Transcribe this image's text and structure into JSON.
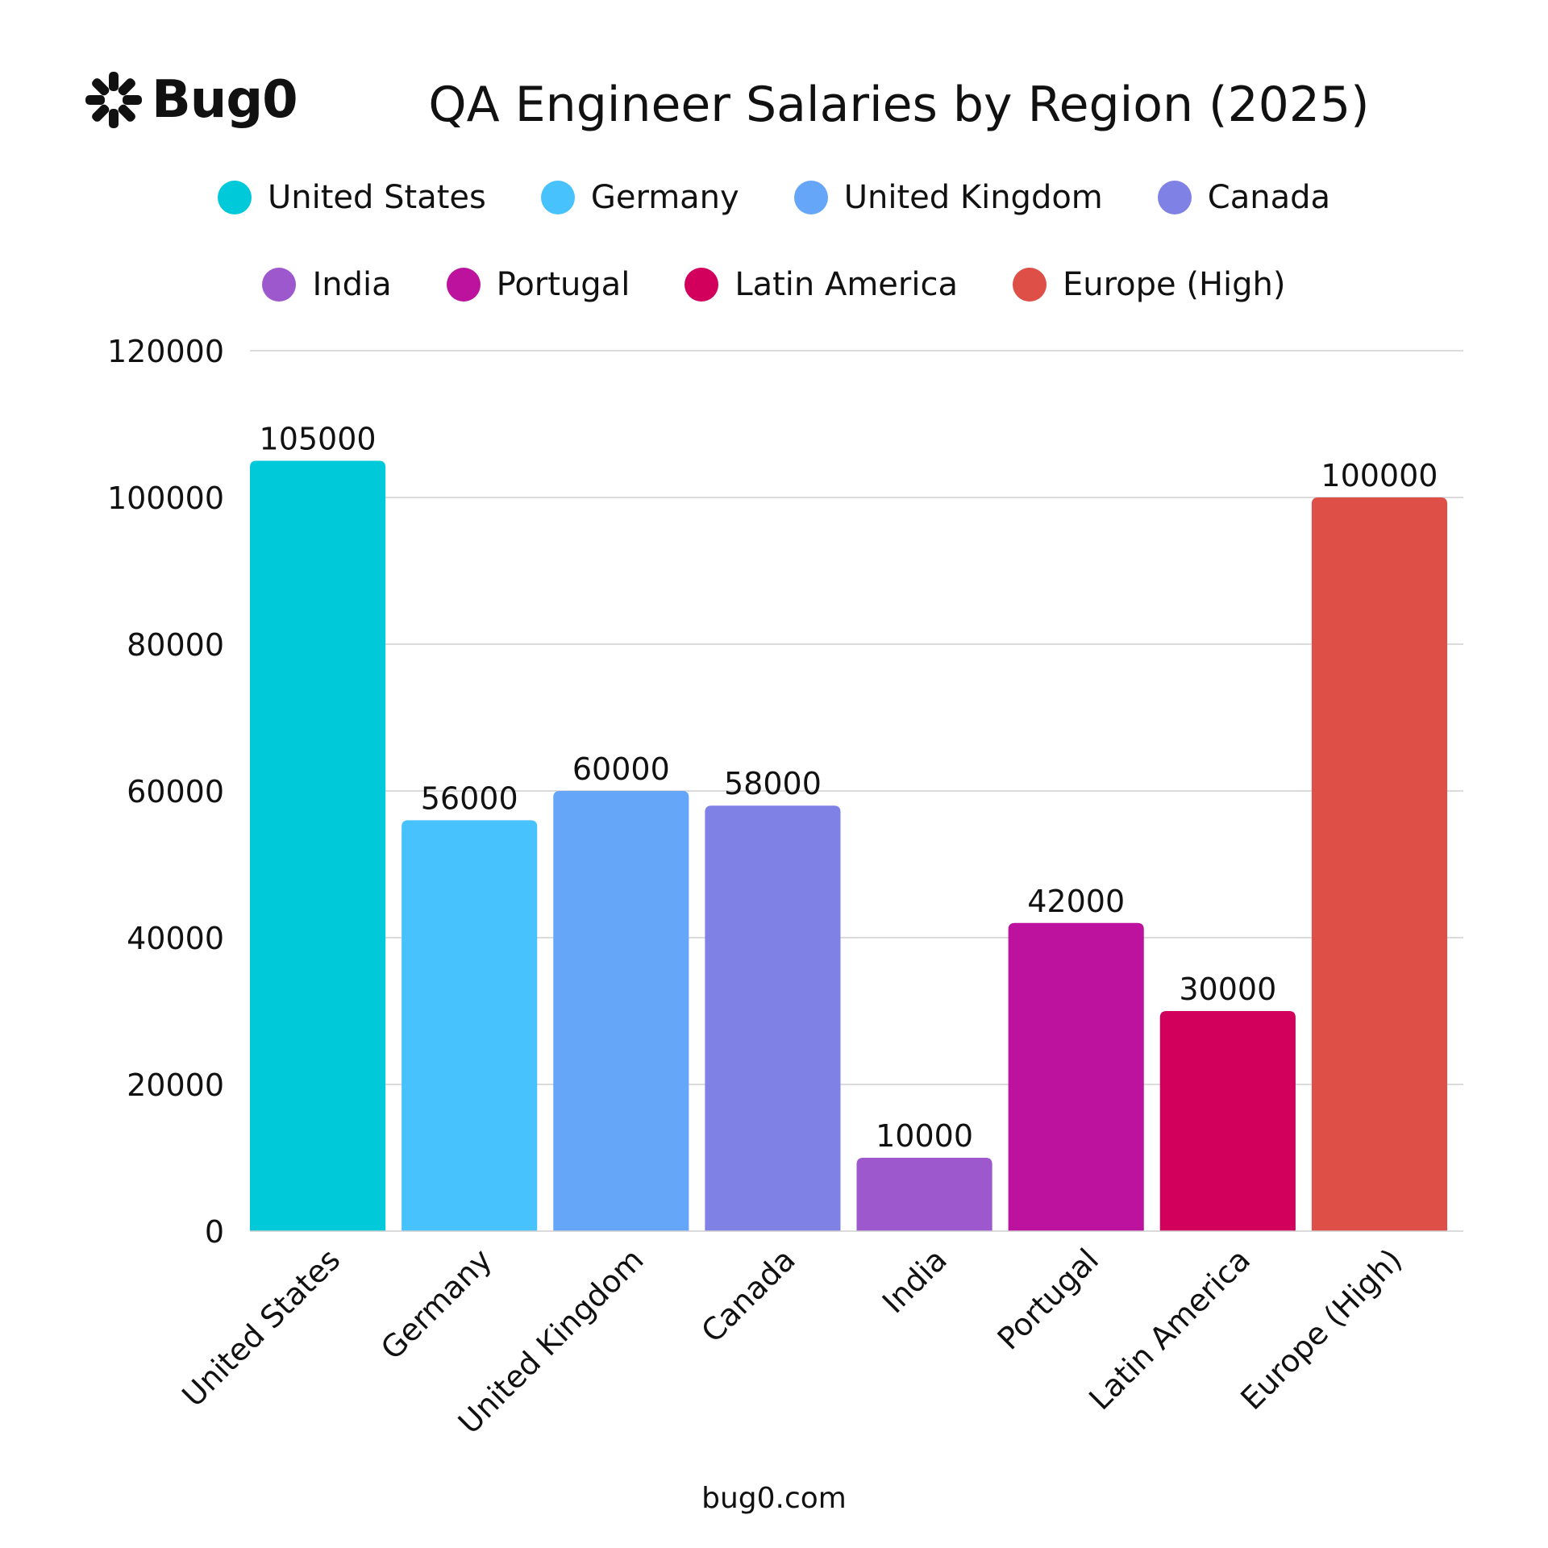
{
  "brand": {
    "name": "Bug0",
    "icon": "bug0-burst-icon"
  },
  "footer": "bug0.com",
  "chart_data": {
    "type": "bar",
    "title": "QA Engineer Salaries by Region (2025)",
    "xlabel": "",
    "ylabel": "",
    "categories": [
      "United States",
      "Germany",
      "United Kingdom",
      "Canada",
      "India",
      "Portugal",
      "Latin America",
      "Europe (High)"
    ],
    "values": [
      105000,
      56000,
      60000,
      58000,
      10000,
      42000,
      30000,
      100000
    ],
    "colors": [
      "#00C9DA",
      "#47C2FC",
      "#66A6F8",
      "#8081E5",
      "#9D58CE",
      "#BD129E",
      "#D2005C",
      "#DD4F47"
    ],
    "ylim": [
      0,
      120000
    ],
    "yticks": [
      "0",
      "20000",
      "40000",
      "60000",
      "80000",
      "100000",
      "120000"
    ],
    "grid": true,
    "legend_position": "top",
    "legend": [
      [
        "United States",
        "Germany",
        "United Kingdom",
        "Canada"
      ],
      [
        "India",
        "Portugal",
        "Latin America",
        "Europe (High)"
      ]
    ]
  }
}
